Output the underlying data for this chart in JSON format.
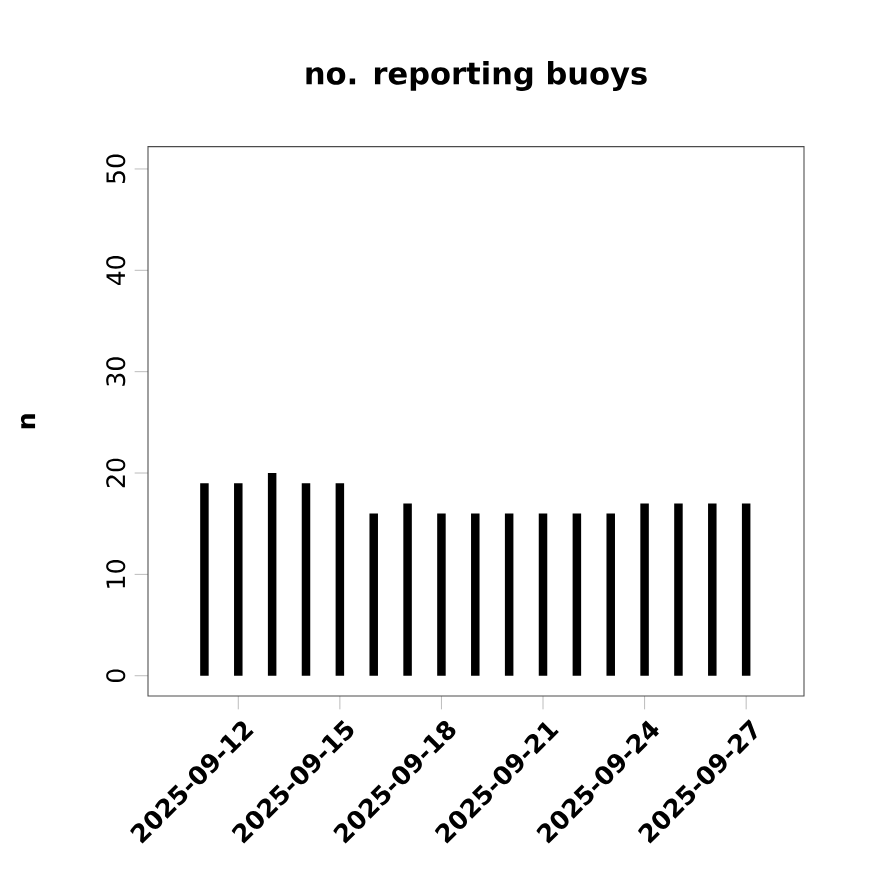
{
  "chart_data": {
    "type": "bar",
    "title": "no. reporting buoys",
    "ylabel": "n",
    "x": [
      "2025-09-11",
      "2025-09-12",
      "2025-09-13",
      "2025-09-14",
      "2025-09-15",
      "2025-09-16",
      "2025-09-17",
      "2025-09-18",
      "2025-09-19",
      "2025-09-20",
      "2025-09-21",
      "2025-09-22",
      "2025-09-23",
      "2025-09-24",
      "2025-09-25",
      "2025-09-26",
      "2025-09-27"
    ],
    "values": [
      19,
      19,
      20,
      19,
      19,
      16,
      17,
      16,
      16,
      16,
      16,
      16,
      16,
      17,
      17,
      17,
      17
    ],
    "color": "#000000",
    "xlim": [
      "2025-09-09T08:00",
      "2025-09-28T17:00"
    ],
    "xticks": [
      "2025-09-12",
      "2025-09-15",
      "2025-09-18",
      "2025-09-21",
      "2025-09-24",
      "2025-09-27"
    ],
    "ylim": [
      -2,
      52.2
    ],
    "yticks": [
      0,
      10,
      20,
      30,
      40,
      50
    ],
    "grid": false
  }
}
